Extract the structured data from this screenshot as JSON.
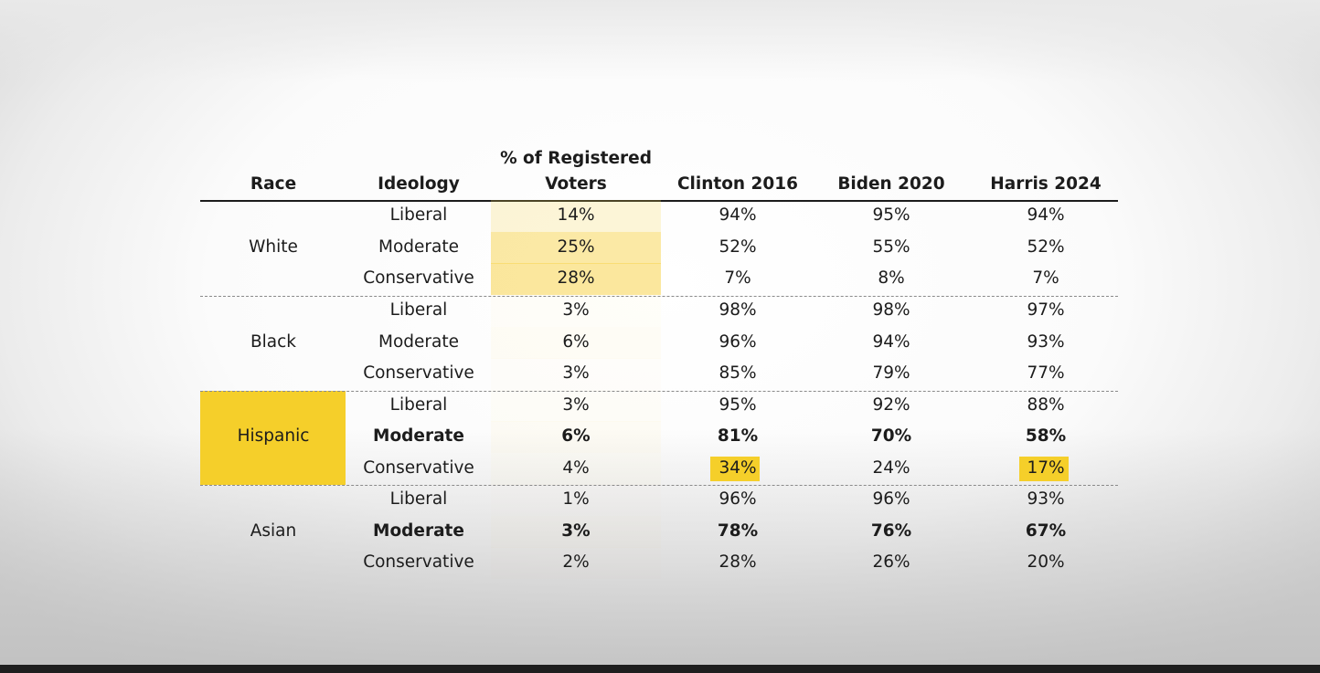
{
  "watermark": "",
  "table": {
    "headers": [
      "Race",
      "Ideology",
      "% of Registered",
      "Voters",
      "Clinton 2016",
      "Biden 2020",
      "Harris 2024"
    ],
    "groups": [
      {
        "race": "White",
        "rows": [
          {
            "ideology": "Liberal",
            "reg": "14%",
            "clinton": "94%",
            "biden": "95%",
            "harris": "94%"
          },
          {
            "ideology": "Moderate",
            "reg": "25%",
            "clinton": "52%",
            "biden": "55%",
            "harris": "52%"
          },
          {
            "ideology": "Conservative",
            "reg": "28%",
            "clinton": "7%",
            "biden": "8%",
            "harris": "7%"
          }
        ]
      },
      {
        "race": "Black",
        "rows": [
          {
            "ideology": "Liberal",
            "reg": "3%",
            "clinton": "98%",
            "biden": "98%",
            "harris": "97%"
          },
          {
            "ideology": "Moderate",
            "reg": "6%",
            "clinton": "96%",
            "biden": "94%",
            "harris": "93%"
          },
          {
            "ideology": "Conservative",
            "reg": "3%",
            "clinton": "85%",
            "biden": "79%",
            "harris": "77%"
          }
        ]
      },
      {
        "race": "Hispanic",
        "rows": [
          {
            "ideology": "Liberal",
            "reg": "3%",
            "clinton": "95%",
            "biden": "92%",
            "harris": "88%"
          },
          {
            "ideology": "Moderate",
            "reg": "6%",
            "clinton": "81%",
            "biden": "70%",
            "harris": "58%"
          },
          {
            "ideology": "Conservative",
            "reg": "4%",
            "clinton": "34%",
            "biden": "24%",
            "harris": "17%"
          }
        ]
      },
      {
        "race": "Asian",
        "rows": [
          {
            "ideology": "Liberal",
            "reg": "1%",
            "clinton": "96%",
            "biden": "96%",
            "harris": "93%"
          },
          {
            "ideology": "Moderate",
            "reg": "3%",
            "clinton": "78%",
            "biden": "76%",
            "harris": "67%"
          },
          {
            "ideology": "Conservative",
            "reg": "2%",
            "clinton": "28%",
            "biden": "26%",
            "harris": "20%"
          }
        ]
      }
    ]
  },
  "colors": {
    "highlight": "#f5cf2a",
    "heat": "#f7d44c",
    "text": "#1c1c1c"
  }
}
